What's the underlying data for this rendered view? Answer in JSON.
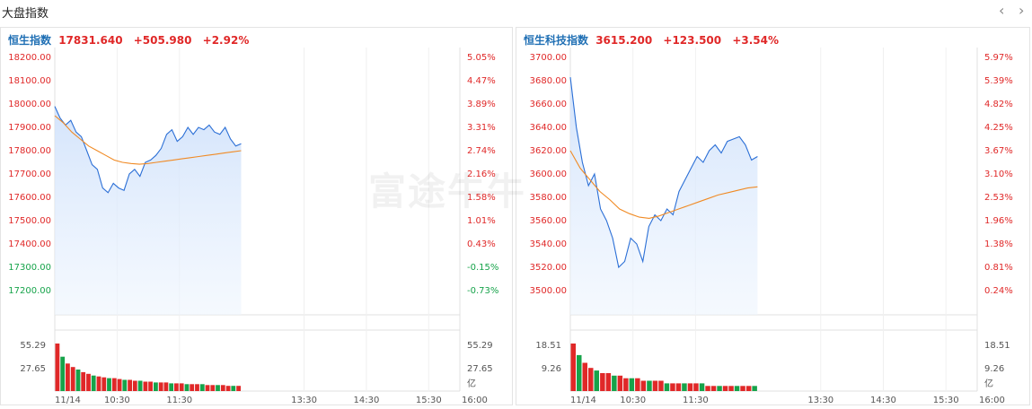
{
  "header": {
    "title": "大盘指数",
    "prev_icon": "chevron-left-icon",
    "next_icon": "chevron-right-icon"
  },
  "watermark": "富途牛牛",
  "colors": {
    "up": "#e02828",
    "down": "#16a34a",
    "line": "#2b6fd6",
    "avg": "#f08a24",
    "name": "#1f6fb4"
  },
  "panels": [
    {
      "name": "恒生指数",
      "price": "17831.640",
      "change": "+505.980",
      "pct": "+2.92%",
      "left_ticks": [
        "18200.00",
        "18100.00",
        "18000.00",
        "17900.00",
        "17800.00",
        "17700.00",
        "17600.00",
        "17500.00",
        "17400.00",
        "17300.00",
        "17200.00"
      ],
      "right_ticks": [
        "5.05%",
        "4.47%",
        "3.89%",
        "3.31%",
        "2.74%",
        "2.16%",
        "1.58%",
        "1.01%",
        "0.43%",
        "-0.15%",
        "-0.73%"
      ],
      "right_tick_colors": [
        "up",
        "up",
        "up",
        "up",
        "up",
        "up",
        "up",
        "up",
        "up",
        "down",
        "down"
      ],
      "left_tick_colors": [
        "up",
        "up",
        "up",
        "up",
        "up",
        "up",
        "up",
        "up",
        "up",
        "down",
        "down"
      ],
      "vol_ticks": [
        "55.29",
        "27.65"
      ],
      "vol_unit": "亿",
      "time_labels": [
        "11/14",
        "10:30",
        "11:30",
        "13:30",
        "14:30",
        "15:30",
        "16:00"
      ]
    },
    {
      "name": "恒生科技指数",
      "price": "3615.200",
      "change": "+123.500",
      "pct": "+3.54%",
      "left_ticks": [
        "3700.00",
        "3680.00",
        "3660.00",
        "3640.00",
        "3620.00",
        "3600.00",
        "3580.00",
        "3560.00",
        "3540.00",
        "3520.00",
        "3500.00"
      ],
      "right_ticks": [
        "5.97%",
        "5.39%",
        "4.82%",
        "4.25%",
        "3.67%",
        "3.10%",
        "2.53%",
        "1.96%",
        "1.38%",
        "0.81%",
        "0.24%"
      ],
      "right_tick_colors": [
        "up",
        "up",
        "up",
        "up",
        "up",
        "up",
        "up",
        "up",
        "up",
        "up",
        "up"
      ],
      "left_tick_colors": [
        "up",
        "up",
        "up",
        "up",
        "up",
        "up",
        "up",
        "up",
        "up",
        "up",
        "up"
      ],
      "vol_ticks": [
        "18.51",
        "9.26"
      ],
      "vol_unit": "亿",
      "time_labels": [
        "11/14",
        "10:30",
        "11:30",
        "13:30",
        "14:30",
        "15:30",
        "16:00"
      ]
    }
  ],
  "chart_data": [
    {
      "type": "line",
      "title": "恒生指数",
      "x_range": [
        "09:30",
        "16:00"
      ],
      "ylim": [
        17200,
        18200
      ],
      "series": [
        {
          "values": [
            17990,
            17940,
            17910,
            17930,
            17880,
            17860,
            17800,
            17740,
            17720,
            17640,
            17620,
            17660,
            17640,
            17630,
            17700,
            17720,
            17690,
            17750,
            17760,
            17780,
            17810,
            17870,
            17890,
            17840,
            17860,
            17900,
            17870,
            17900,
            17890,
            17910,
            17880,
            17870,
            17900,
            17850,
            17820,
            17830
          ]
        },
        {
          "values": [
            17950,
            17920,
            17880,
            17850,
            17820,
            17800,
            17780,
            17760,
            17750,
            17745,
            17742,
            17745,
            17750,
            17755,
            17760,
            17765,
            17770,
            17775,
            17780,
            17785,
            17790,
            17795,
            17800
          ]
        }
      ],
      "volume": [
        55.29,
        40,
        32,
        28,
        25,
        22,
        20,
        18,
        17,
        16,
        15,
        15,
        14,
        13,
        13,
        12,
        12,
        11,
        11,
        10,
        10,
        10,
        9,
        9,
        9,
        8,
        8,
        8,
        8,
        7,
        7,
        7,
        7,
        6,
        6,
        6
      ]
    },
    {
      "type": "line",
      "title": "恒生科技指数",
      "x_range": [
        "09:30",
        "16:00"
      ],
      "ylim": [
        3500,
        3700
      ],
      "series": [
        {
          "values": [
            3683,
            3640,
            3610,
            3590,
            3600,
            3570,
            3560,
            3545,
            3520,
            3525,
            3545,
            3540,
            3525,
            3555,
            3565,
            3560,
            3570,
            3565,
            3585,
            3595,
            3605,
            3615,
            3610,
            3620,
            3625,
            3618,
            3628,
            3630,
            3632,
            3625,
            3612,
            3615
          ]
        },
        {
          "values": [
            3620,
            3605,
            3595,
            3585,
            3578,
            3570,
            3566,
            3563,
            3562,
            3564,
            3567,
            3570,
            3573,
            3576,
            3579,
            3582,
            3584,
            3586,
            3588,
            3589
          ]
        }
      ],
      "volume": [
        18.51,
        14,
        11,
        9,
        8,
        7,
        7,
        6,
        6,
        5,
        5,
        5,
        4,
        4,
        4,
        4,
        3,
        3,
        3,
        3,
        3,
        3,
        3,
        2,
        2,
        2,
        2,
        2,
        2,
        2,
        2,
        2
      ]
    }
  ]
}
